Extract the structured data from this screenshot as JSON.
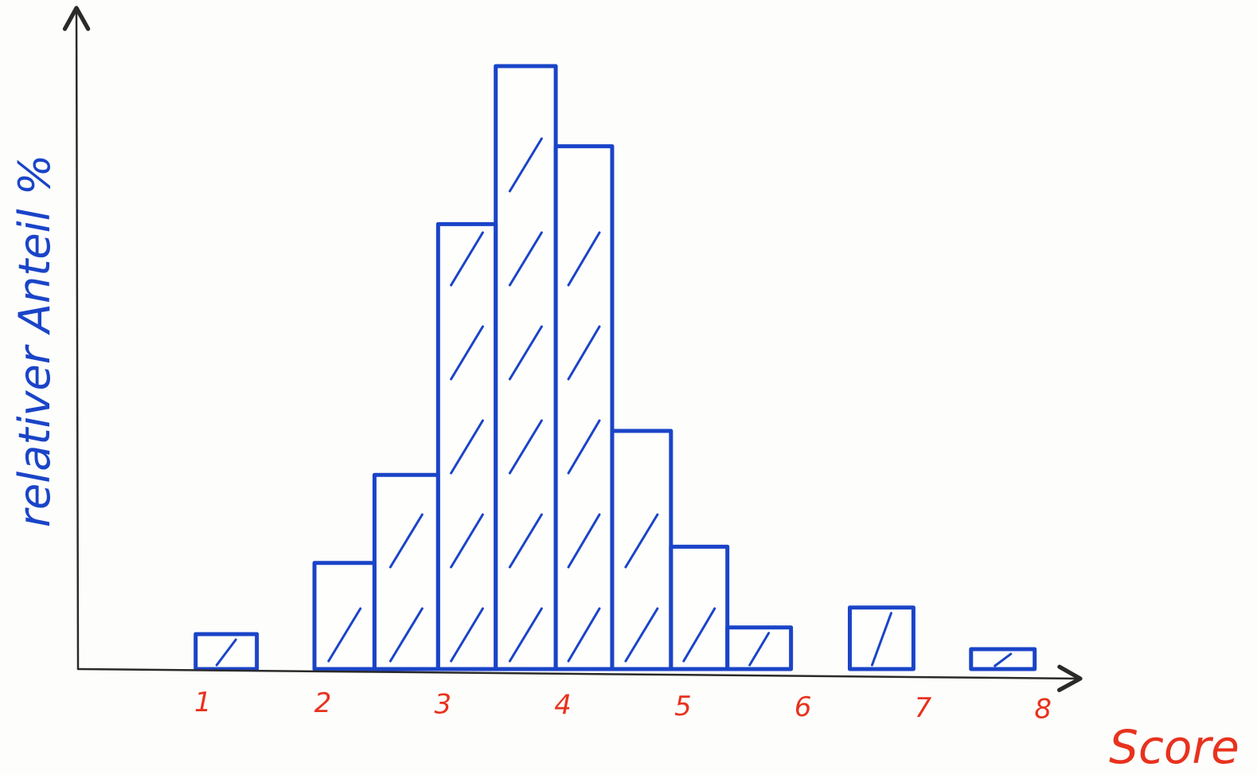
{
  "chart_data": {
    "type": "bar",
    "title": "",
    "xlabel": "Score",
    "ylabel": "relativer Anteil %",
    "x_ticks": [
      "1",
      "2",
      "3",
      "4",
      "5",
      "6",
      "7",
      "8"
    ],
    "xlim": [
      0.0,
      8.35
    ],
    "ylim": [
      0,
      100
    ],
    "grid": false,
    "legend": "none",
    "bins": [
      {
        "from": 0.98,
        "to": 1.49,
        "value": 5.8
      },
      {
        "from": 1.97,
        "to": 2.47,
        "value": 17.6
      },
      {
        "from": 2.47,
        "to": 3.0,
        "value": 32.2
      },
      {
        "from": 3.0,
        "to": 3.48,
        "value": 73.8
      },
      {
        "from": 3.48,
        "to": 3.98,
        "value": 100
      },
      {
        "from": 3.98,
        "to": 4.45,
        "value": 86.7
      },
      {
        "from": 4.45,
        "to": 4.94,
        "value": 39.5
      },
      {
        "from": 4.94,
        "to": 5.41,
        "value": 20.3
      },
      {
        "from": 5.41,
        "to": 5.94,
        "value": 6.9
      },
      {
        "from": 6.43,
        "to": 6.96,
        "value": 10.2
      },
      {
        "from": 7.44,
        "to": 7.97,
        "value": 3.3
      }
    ],
    "colors": {
      "bars": "#1a44c8",
      "axis": "#2a2a2a",
      "tick_labels": "#e8321e",
      "ylabel": "#1a44c8",
      "xlabel": "#e8321e"
    }
  }
}
